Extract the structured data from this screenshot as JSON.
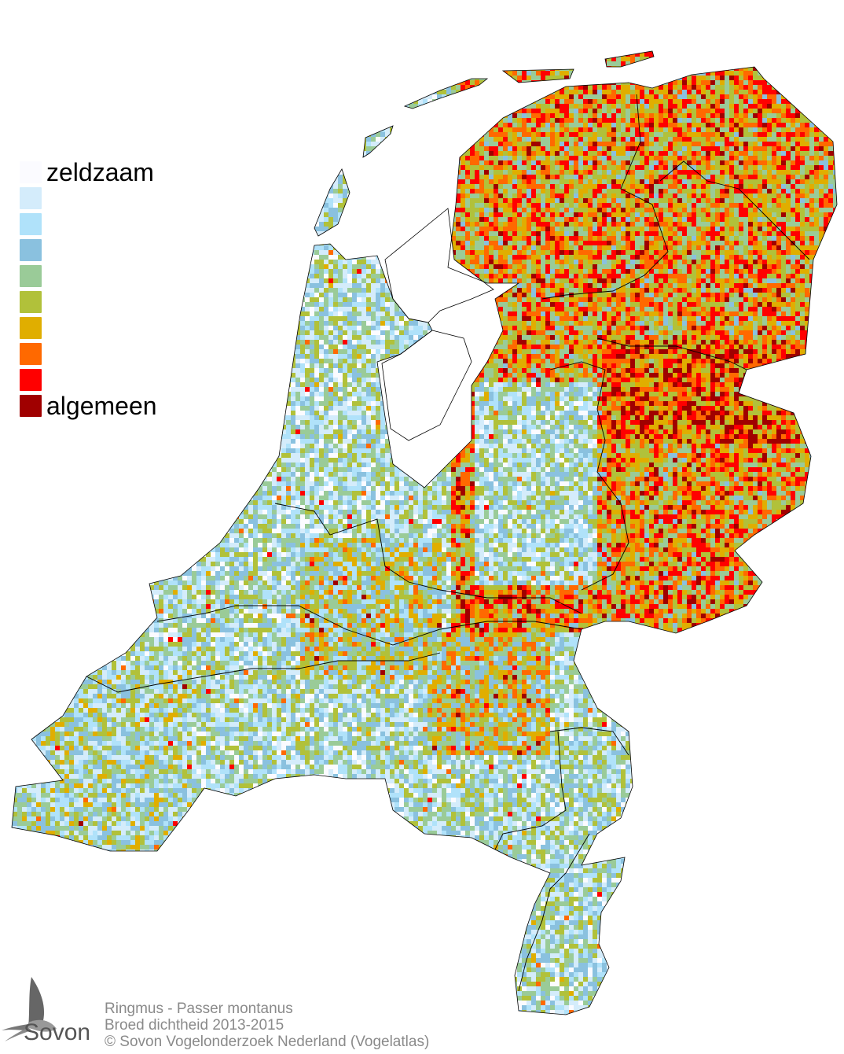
{
  "legend": {
    "top_label": "zeldzaam",
    "bottom_label": "algemeen",
    "colors": [
      "#fbfbff",
      "#d4ecfb",
      "#b0e2fa",
      "#8ac1df",
      "#9acb98",
      "#b1c13a",
      "#e0ae00",
      "#ff6900",
      "#ff0000",
      "#a00000"
    ]
  },
  "footer": {
    "species": "Ringmus - Passer montanus",
    "subtitle": "Broed dichtheid 2013-2015",
    "copyright": "© Sovon Vogelonderzoek Nederland (Vogelatlas)"
  },
  "logo": {
    "text": "Sovon",
    "icon": "swallow-icon"
  }
}
